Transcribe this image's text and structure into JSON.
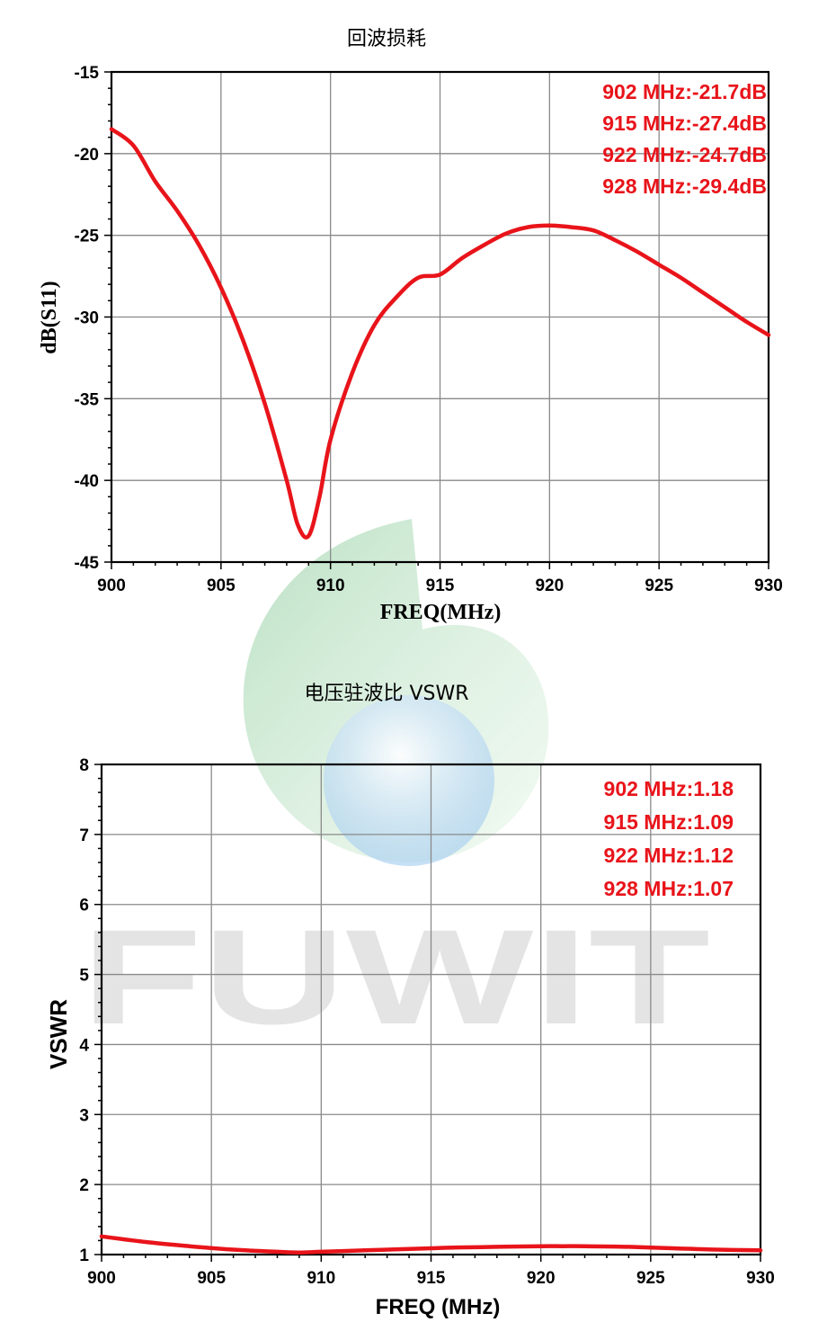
{
  "watermark": {
    "text": "FUWIT",
    "colors": {
      "green": "#2fa84f",
      "blue": "#5aa8e6",
      "gray": "#cfcfcf"
    }
  },
  "colors": {
    "curve": "#e8141a",
    "annotation": "#e8141a",
    "grid": "#8a8a8a",
    "axis": "#000000"
  },
  "chart_data": [
    {
      "type": "line",
      "title": "回波损耗",
      "xlabel": "FREQ(MHz)",
      "ylabel": "dB(S11)",
      "xlim": [
        900,
        930
      ],
      "ylim": [
        -45,
        -15
      ],
      "xticks": [
        900,
        905,
        910,
        915,
        920,
        925,
        930
      ],
      "yticks": [
        -45,
        -40,
        -35,
        -30,
        -25,
        -20,
        -15
      ],
      "grid": true,
      "series": [
        {
          "x": [
            900,
            901,
            902,
            903,
            904,
            905,
            906,
            907,
            908,
            908.5,
            909,
            909.5,
            910,
            911,
            912,
            913,
            914,
            915,
            916,
            917,
            918,
            919,
            920,
            921,
            922,
            923,
            924,
            925,
            926,
            927,
            928,
            929,
            930
          ],
          "values": [
            -18.5,
            -19.5,
            -21.7,
            -23.5,
            -25.6,
            -28.2,
            -31.4,
            -35.3,
            -40.0,
            -42.7,
            -43.4,
            -41.0,
            -37.5,
            -33.4,
            -30.5,
            -28.8,
            -27.6,
            -27.4,
            -26.4,
            -25.6,
            -24.9,
            -24.5,
            -24.4,
            -24.5,
            -24.7,
            -25.3,
            -26.0,
            -26.8,
            -27.6,
            -28.5,
            -29.4,
            -30.3,
            -31.1
          ]
        }
      ],
      "annotations": [
        "902 MHz:-21.7dB",
        "915 MHz:-27.4dB",
        "922 MHz:-24.7dB",
        "928 MHz:-29.4dB"
      ]
    },
    {
      "type": "line",
      "title": "电压驻波比 VSWR",
      "xlabel": "FREQ (MHz)",
      "ylabel": "VSWR",
      "xlim": [
        900,
        930
      ],
      "ylim": [
        1,
        8
      ],
      "xticks": [
        900,
        905,
        910,
        915,
        920,
        925,
        930
      ],
      "yticks": [
        1,
        2,
        3,
        4,
        5,
        6,
        7,
        8
      ],
      "grid": true,
      "series": [
        {
          "x": [
            900,
            902,
            904,
            906,
            908,
            909,
            910,
            912,
            914,
            915,
            916,
            918,
            920,
            921,
            922,
            924,
            926,
            928,
            930
          ],
          "values": [
            1.26,
            1.18,
            1.12,
            1.07,
            1.04,
            1.03,
            1.04,
            1.06,
            1.08,
            1.09,
            1.1,
            1.11,
            1.12,
            1.12,
            1.12,
            1.11,
            1.09,
            1.07,
            1.06
          ]
        }
      ],
      "annotations": [
        "902 MHz:1.18",
        "915 MHz:1.09",
        "922 MHz:1.12",
        "928 MHz:1.07"
      ]
    }
  ]
}
